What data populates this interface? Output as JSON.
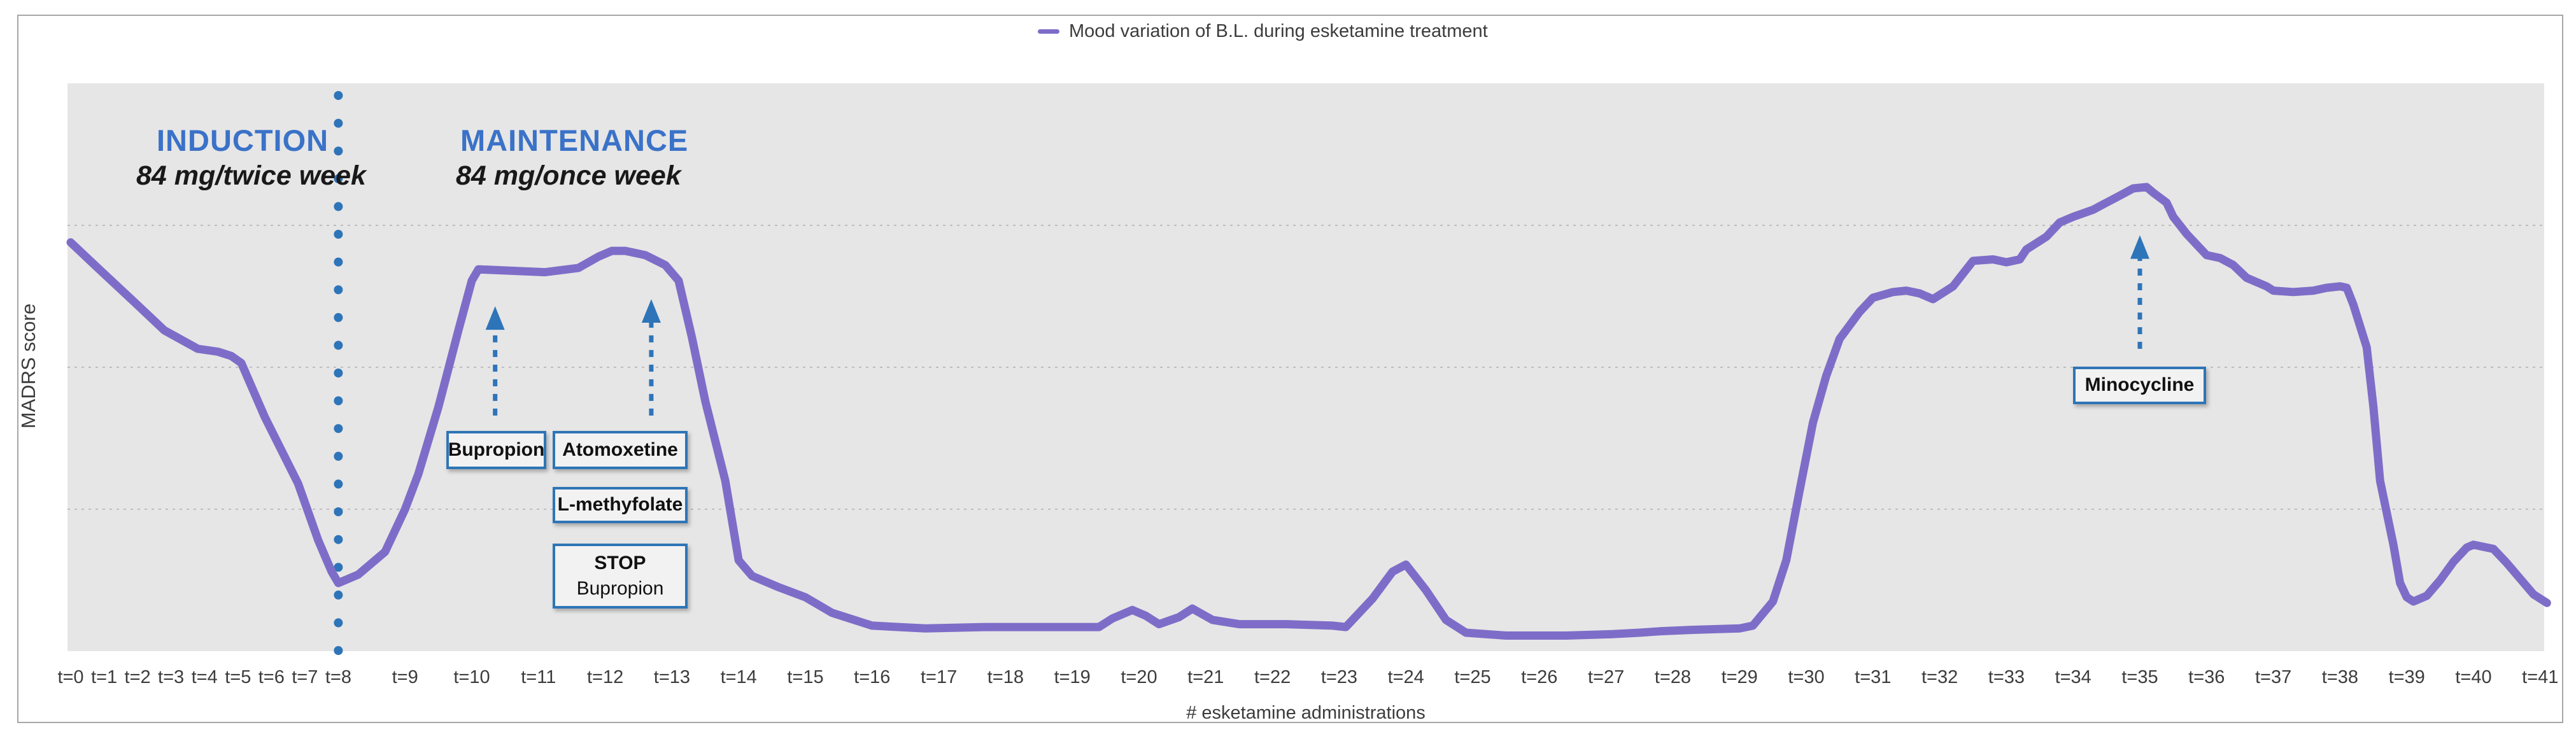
{
  "legend": {
    "label": "Mood variation of B.L. during esketamine treatment"
  },
  "phases": {
    "induction": {
      "title": "INDUCTION",
      "dose": "84 mg/twice week"
    },
    "maintenance": {
      "title": "MAINTENANCE",
      "dose": "84 mg/once week"
    }
  },
  "annotations": {
    "bupropion": "Bupropion",
    "atomoxetine": "Atomoxetine",
    "l_methyfolate": "L-methyfolate",
    "stop_line1": "STOP",
    "stop_line2": "Bupropion",
    "minocycline": "Minocycline"
  },
  "axes": {
    "ylabel": "MADRS score",
    "xlabel": "# esketamine administrations",
    "x_ticks": [
      "t=0",
      "t=1",
      "t=2",
      "t=3",
      "t=4",
      "t=5",
      "t=6",
      "t=7",
      "t=8",
      "t=9",
      "t=10",
      "t=11",
      "t=12",
      "t=13",
      "t=14",
      "t=15",
      "t=16",
      "t=17",
      "t=18",
      "t=19",
      "t=20",
      "t=21",
      "t=22",
      "t=23",
      "t=24",
      "t=25",
      "t=26",
      "t=27",
      "t=28",
      "t=29",
      "t=30",
      "t=31",
      "t=32",
      "t=33",
      "t=34",
      "t=35",
      "t=36",
      "t=37",
      "t=38",
      "t=39",
      "t=40",
      "t=41"
    ]
  },
  "colors": {
    "line_purple": "#7e6dc8",
    "accent_blue": "#2e74b9",
    "title_blue": "#3a72c8",
    "plot_bg": "#e6e6e6",
    "gridline": "#bdbdbd",
    "text_dark": "#3c3c3c",
    "frame_border": "#a6a6a6",
    "box_fill": "#f2f2f2"
  },
  "chart_data": {
    "type": "line",
    "title": "Mood variation of B.L. during esketamine treatment",
    "xlabel": "# esketamine administrations",
    "ylabel": "MADRS score",
    "x_categories": [
      "t=0",
      "t=1",
      "t=2",
      "t=3",
      "t=4",
      "t=5",
      "t=6",
      "t=7",
      "t=8",
      "t=9",
      "t=10",
      "t=11",
      "t=12",
      "t=13",
      "t=14",
      "t=15",
      "t=16",
      "t=17",
      "t=18",
      "t=19",
      "t=20",
      "t=21",
      "t=22",
      "t=23",
      "t=24",
      "t=25",
      "t=26",
      "t=27",
      "t=28",
      "t=29",
      "t=30",
      "t=31",
      "t=32",
      "t=33",
      "t=34",
      "t=35",
      "t=36",
      "t=37",
      "t=38",
      "t=39",
      "t=40",
      "t=41"
    ],
    "ylim": [
      0,
      40
    ],
    "y_axis_tick_labels_shown": false,
    "gridlines_v": [
      10,
      20,
      30
    ],
    "grid": "horizontal-dotted",
    "legend_position": "top-center",
    "madrs_values_estimated_from_pixels": true,
    "phase_boundary_t": 8,
    "induction_range_t": [
      0,
      8
    ],
    "maintenance_range_t": [
      8,
      41
    ],
    "series": [
      {
        "name": "Mood variation of B.L. during esketamine treatment",
        "color": "#7e6dc8",
        "points": [
          [
            0,
            28.8
          ],
          [
            0.9,
            26.8
          ],
          [
            1.9,
            24.6
          ],
          [
            2.8,
            22.6
          ],
          [
            3.8,
            21.3
          ],
          [
            4.4,
            21.1
          ],
          [
            4.8,
            20.8
          ],
          [
            5.1,
            20.3
          ],
          [
            5.8,
            16.5
          ],
          [
            6.8,
            11.8
          ],
          [
            7.4,
            7.8
          ],
          [
            7.8,
            5.6
          ],
          [
            8,
            4.8
          ],
          [
            8.3,
            5.4
          ],
          [
            8.7,
            7
          ],
          [
            9,
            10
          ],
          [
            9.2,
            12.5
          ],
          [
            9.5,
            17.2
          ],
          [
            9.8,
            22.6
          ],
          [
            10,
            26.1
          ],
          [
            10.1,
            26.9
          ],
          [
            10.6,
            26.8
          ],
          [
            11.1,
            26.7
          ],
          [
            11.6,
            27
          ],
          [
            11.9,
            27.8
          ],
          [
            12.1,
            28.2
          ],
          [
            12.3,
            28.2
          ],
          [
            12.6,
            27.9
          ],
          [
            12.9,
            27.2
          ],
          [
            13.1,
            26.1
          ],
          [
            13.3,
            22.1
          ],
          [
            13.5,
            17.6
          ],
          [
            13.8,
            12
          ],
          [
            14,
            6.4
          ],
          [
            14.2,
            5.3
          ],
          [
            14.6,
            4.5
          ],
          [
            15,
            3.8
          ],
          [
            15.4,
            2.7
          ],
          [
            16,
            1.8
          ],
          [
            16.8,
            1.6
          ],
          [
            17.7,
            1.7
          ],
          [
            18.7,
            1.7
          ],
          [
            19.4,
            1.7
          ],
          [
            19.6,
            2.3
          ],
          [
            19.9,
            2.9
          ],
          [
            20.1,
            2.5
          ],
          [
            20.3,
            1.9
          ],
          [
            20.6,
            2.4
          ],
          [
            20.8,
            3
          ],
          [
            21.1,
            2.2
          ],
          [
            21.5,
            1.9
          ],
          [
            22.2,
            1.9
          ],
          [
            22.9,
            1.8
          ],
          [
            23.1,
            1.7
          ],
          [
            23.5,
            3.7
          ],
          [
            23.8,
            5.6
          ],
          [
            24,
            6.1
          ],
          [
            24.3,
            4.3
          ],
          [
            24.6,
            2.2
          ],
          [
            24.9,
            1.3
          ],
          [
            25.5,
            1.1
          ],
          [
            26.4,
            1.1
          ],
          [
            27.1,
            1.2
          ],
          [
            27.5,
            1.3
          ],
          [
            27.8,
            1.4
          ],
          [
            28.3,
            1.5
          ],
          [
            29,
            1.6
          ],
          [
            29.2,
            1.8
          ],
          [
            29.5,
            3.5
          ],
          [
            29.7,
            6.4
          ],
          [
            29.9,
            11.3
          ],
          [
            30.1,
            16.1
          ],
          [
            30.3,
            19.4
          ],
          [
            30.5,
            22
          ],
          [
            30.8,
            23.9
          ],
          [
            31,
            24.9
          ],
          [
            31.3,
            25.3
          ],
          [
            31.5,
            25.4
          ],
          [
            31.7,
            25.2
          ],
          [
            31.9,
            24.8
          ],
          [
            32.2,
            25.7
          ],
          [
            32.4,
            26.9
          ],
          [
            32.5,
            27.5
          ],
          [
            32.8,
            27.6
          ],
          [
            33,
            27.4
          ],
          [
            33.2,
            27.6
          ],
          [
            33.3,
            28.3
          ],
          [
            33.6,
            29.2
          ],
          [
            33.8,
            30.2
          ],
          [
            34,
            30.6
          ],
          [
            34.3,
            31.1
          ],
          [
            34.5,
            31.6
          ],
          [
            34.7,
            32.1
          ],
          [
            34.9,
            32.6
          ],
          [
            35.1,
            32.7
          ],
          [
            35.2,
            32.3
          ],
          [
            35.4,
            31.6
          ],
          [
            35.5,
            30.6
          ],
          [
            35.7,
            29.4
          ],
          [
            35.9,
            28.4
          ],
          [
            36,
            27.9
          ],
          [
            36.2,
            27.7
          ],
          [
            36.4,
            27.2
          ],
          [
            36.6,
            26.3
          ],
          [
            36.9,
            25.7
          ],
          [
            37,
            25.4
          ],
          [
            37.3,
            25.3
          ],
          [
            37.6,
            25.4
          ],
          [
            37.8,
            25.6
          ],
          [
            38,
            25.7
          ],
          [
            38.1,
            25.6
          ],
          [
            38.2,
            24.4
          ],
          [
            38.4,
            21.4
          ],
          [
            38.5,
            17.2
          ],
          [
            38.6,
            12
          ],
          [
            38.8,
            7.5
          ],
          [
            38.9,
            4.8
          ],
          [
            39,
            3.8
          ],
          [
            39.1,
            3.5
          ],
          [
            39.3,
            3.9
          ],
          [
            39.5,
            5
          ],
          [
            39.7,
            6.3
          ],
          [
            39.9,
            7.3
          ],
          [
            40,
            7.5
          ],
          [
            40.3,
            7.2
          ],
          [
            40.5,
            6.2
          ],
          [
            40.7,
            5.1
          ],
          [
            40.9,
            4
          ],
          [
            41.1,
            3.4
          ]
        ]
      }
    ],
    "arrows": [
      {
        "name": "bupropion-arrow",
        "t": 10.35,
        "tip_v": 24.3,
        "base_v": 16.6
      },
      {
        "name": "atomoxetine-arrow",
        "t": 12.69,
        "tip_v": 24.8,
        "base_v": 16.6
      },
      {
        "name": "minocycline-arrow",
        "t": 35.0,
        "tip_v": 29.3,
        "base_v": 21.3
      }
    ]
  }
}
